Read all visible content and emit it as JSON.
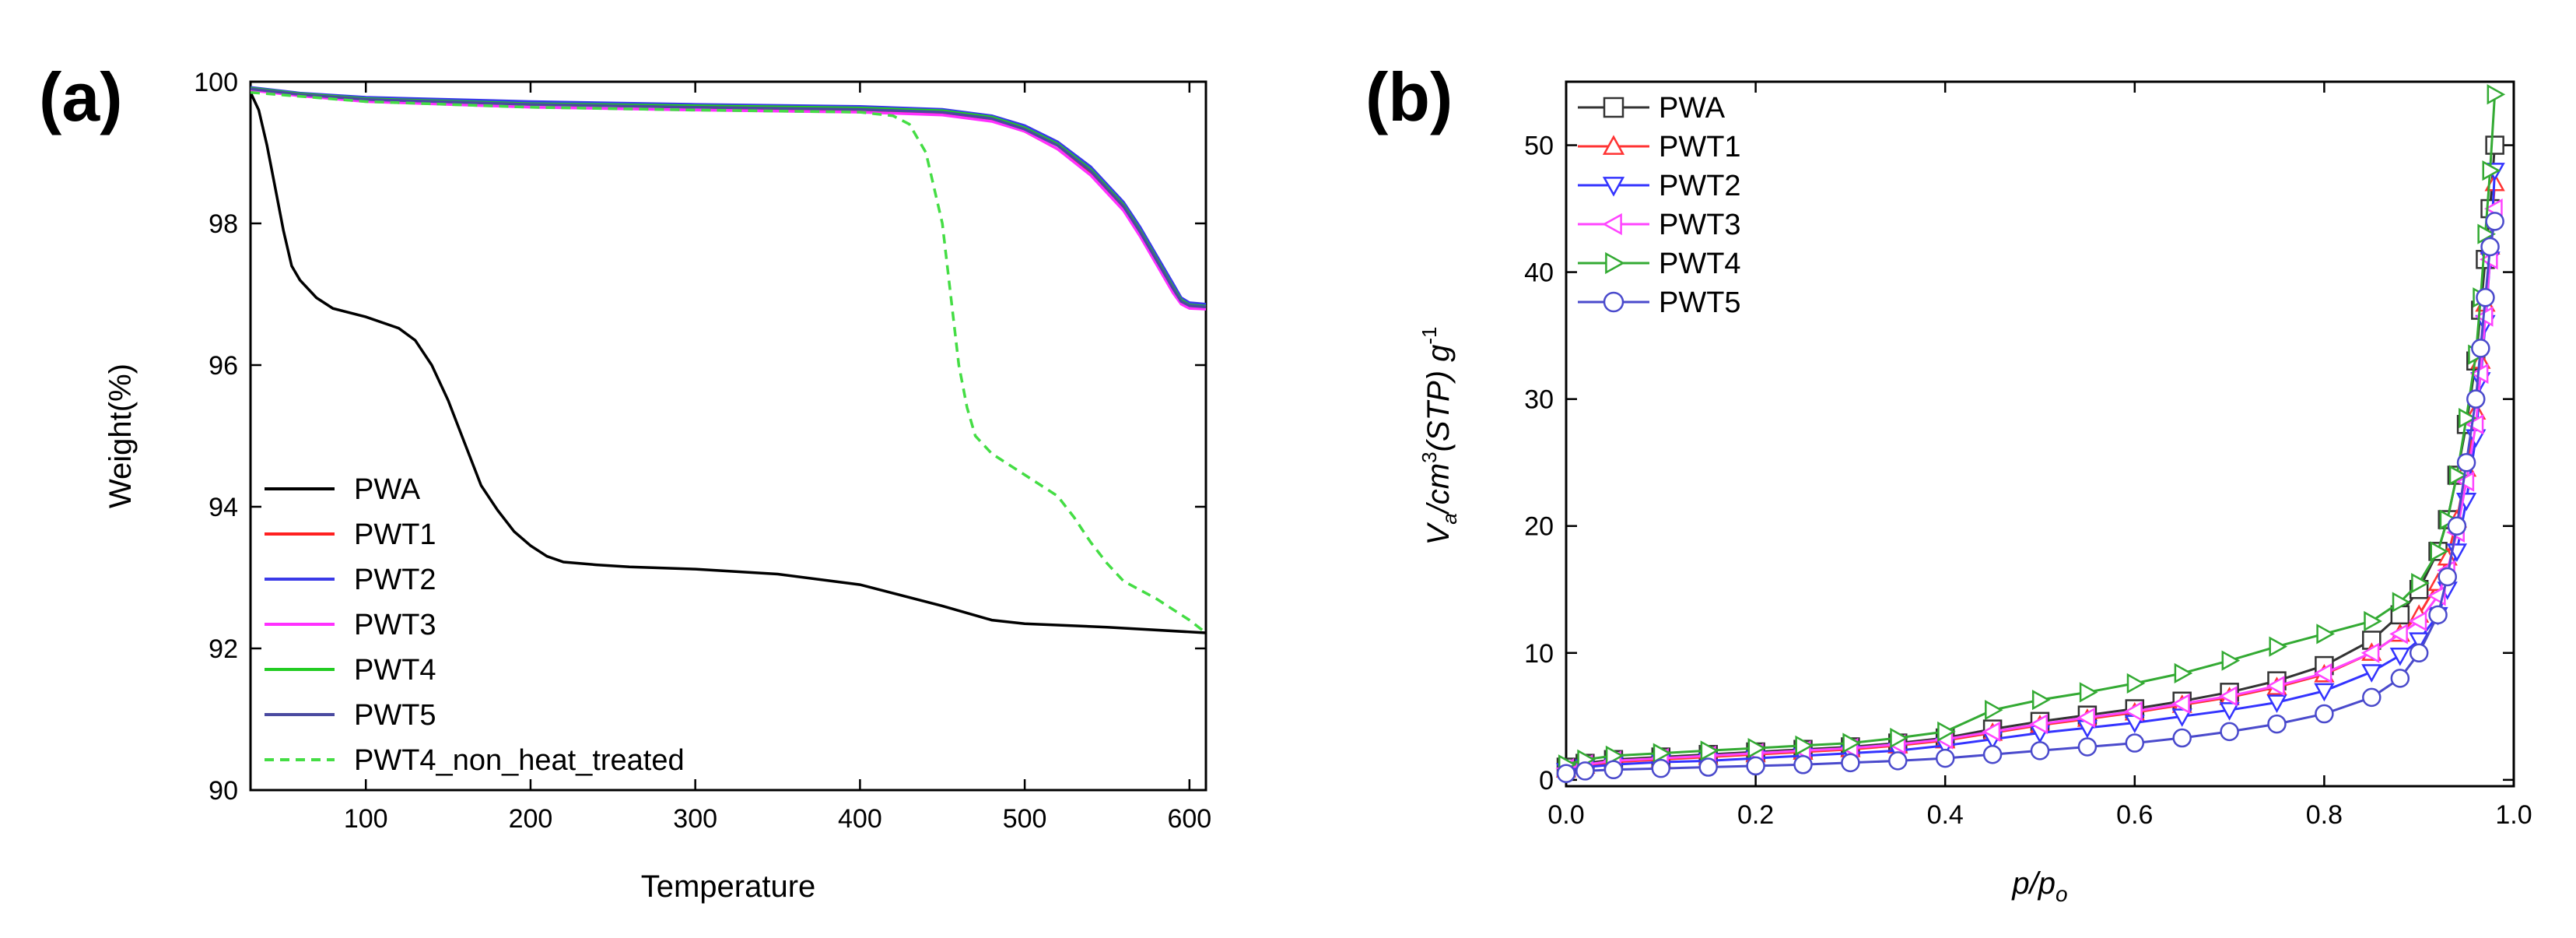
{
  "chart_data": [
    {
      "panel_label": "(a)",
      "type": "line",
      "xlabel": "Temperature",
      "ylabel": "Weight(%)",
      "xlim": [
        30,
        610
      ],
      "ylim": [
        90,
        100
      ],
      "xticks": [
        100,
        200,
        300,
        400,
        500,
        600
      ],
      "yticks": [
        90,
        92,
        94,
        96,
        98,
        100
      ],
      "legend_position": "bottom-left",
      "series": [
        {
          "name": "PWA",
          "color": "#000000",
          "dash": "solid",
          "x": [
            30,
            35,
            40,
            45,
            50,
            55,
            60,
            70,
            80,
            100,
            120,
            130,
            140,
            150,
            160,
            170,
            180,
            190,
            200,
            210,
            220,
            240,
            260,
            300,
            350,
            400,
            450,
            480,
            500,
            550,
            610
          ],
          "y": [
            99.85,
            99.6,
            99.1,
            98.5,
            97.9,
            97.4,
            97.2,
            96.95,
            96.8,
            96.68,
            96.52,
            96.35,
            96.0,
            95.5,
            94.9,
            94.3,
            93.95,
            93.65,
            93.45,
            93.3,
            93.22,
            93.18,
            93.15,
            93.12,
            93.05,
            92.9,
            92.6,
            92.4,
            92.35,
            92.3,
            92.22
          ]
        },
        {
          "name": "PWT1",
          "color": "#ff2020",
          "dash": "solid",
          "x": [
            30,
            60,
            100,
            200,
            300,
            400,
            450,
            480,
            500,
            520,
            540,
            560,
            570,
            580,
            590,
            595,
            600,
            610
          ],
          "y": [
            99.9,
            99.82,
            99.75,
            99.68,
            99.64,
            99.6,
            99.55,
            99.45,
            99.3,
            99.05,
            98.7,
            98.2,
            97.85,
            97.45,
            97.05,
            96.9,
            96.82,
            96.8
          ]
        },
        {
          "name": "PWT2",
          "color": "#3a3ae8",
          "dash": "solid",
          "x": [
            30,
            60,
            100,
            200,
            300,
            400,
            450,
            480,
            500,
            520,
            540,
            560,
            570,
            580,
            590,
            595,
            600,
            610
          ],
          "y": [
            99.92,
            99.84,
            99.78,
            99.72,
            99.68,
            99.65,
            99.61,
            99.52,
            99.38,
            99.15,
            98.8,
            98.3,
            97.95,
            97.55,
            97.15,
            96.95,
            96.88,
            96.86
          ]
        },
        {
          "name": "PWT3",
          "color": "#ff30ff",
          "dash": "solid",
          "x": [
            30,
            60,
            100,
            200,
            300,
            400,
            450,
            480,
            500,
            520,
            540,
            560,
            570,
            580,
            590,
            595,
            600,
            610
          ],
          "y": [
            99.88,
            99.8,
            99.72,
            99.64,
            99.6,
            99.57,
            99.53,
            99.44,
            99.3,
            99.05,
            98.68,
            98.18,
            97.82,
            97.42,
            97.02,
            96.86,
            96.8,
            96.79
          ]
        },
        {
          "name": "PWT4",
          "color": "#22cc22",
          "dash": "solid",
          "x": [
            30,
            60,
            100,
            200,
            300,
            400,
            450,
            480,
            500,
            520,
            540,
            560,
            570,
            580,
            590,
            595,
            600,
            610
          ],
          "y": [
            99.91,
            99.83,
            99.76,
            99.69,
            99.66,
            99.63,
            99.59,
            99.5,
            99.35,
            99.12,
            98.76,
            98.26,
            97.9,
            97.5,
            97.1,
            96.92,
            96.85,
            96.83
          ]
        },
        {
          "name": "PWT5",
          "color": "#4a4aa0",
          "dash": "solid",
          "x": [
            30,
            60,
            100,
            200,
            300,
            400,
            450,
            480,
            500,
            520,
            540,
            560,
            570,
            580,
            590,
            595,
            600,
            610
          ],
          "y": [
            99.9,
            99.82,
            99.75,
            99.68,
            99.64,
            99.61,
            99.57,
            99.48,
            99.33,
            99.1,
            98.74,
            98.24,
            97.88,
            97.48,
            97.08,
            96.9,
            96.84,
            96.82
          ]
        },
        {
          "name": "PWT4_non_heat_treated",
          "color": "#44dd44",
          "dash": "dashed",
          "x": [
            30,
            100,
            200,
            300,
            400,
            420,
            430,
            440,
            450,
            455,
            460,
            465,
            470,
            480,
            500,
            520,
            530,
            540,
            550,
            560,
            580,
            600,
            610
          ],
          "y": [
            99.85,
            99.72,
            99.64,
            99.6,
            99.57,
            99.52,
            99.4,
            99.0,
            98.0,
            97.0,
            96.0,
            95.4,
            95.0,
            94.75,
            94.45,
            94.15,
            93.85,
            93.5,
            93.2,
            92.95,
            92.7,
            92.4,
            92.22
          ]
        }
      ]
    },
    {
      "panel_label": "(b)",
      "type": "line",
      "xlabel": "p/p",
      "xlabel_sub": "o",
      "ylabel_parts": {
        "v": "V",
        "v_sub": "a",
        "mid": "/cm",
        "sup3": "3",
        "stp": "(STP) g",
        "sup_neg1": "-1"
      },
      "xlim": [
        0,
        1.0
      ],
      "ylim": [
        -0.5,
        55
      ],
      "xticks": [
        0.0,
        0.2,
        0.4,
        0.6,
        0.8,
        1.0
      ],
      "yticks": [
        0,
        10,
        20,
        30,
        40,
        50
      ],
      "legend_position": "top-left",
      "series": [
        {
          "name": "PWA",
          "color": "#333333",
          "marker": "square",
          "x": [
            0.0,
            0.02,
            0.05,
            0.1,
            0.15,
            0.2,
            0.25,
            0.3,
            0.35,
            0.4,
            0.45,
            0.5,
            0.55,
            0.6,
            0.65,
            0.7,
            0.75,
            0.8,
            0.85,
            0.88,
            0.9,
            0.92,
            0.93,
            0.94,
            0.95,
            0.96,
            0.965,
            0.97,
            0.975,
            0.98
          ],
          "y": [
            1.0,
            1.3,
            1.6,
            1.8,
            2.0,
            2.2,
            2.4,
            2.6,
            2.9,
            3.3,
            4.0,
            4.6,
            5.1,
            5.6,
            6.2,
            6.9,
            7.8,
            9.0,
            11.0,
            13.0,
            15.0,
            18.0,
            20.5,
            24.0,
            28.0,
            33.0,
            37.0,
            41.0,
            45.0,
            50.0
          ]
        },
        {
          "name": "PWT1",
          "color": "#ff3333",
          "marker": "triangle-up",
          "x": [
            0.0,
            0.02,
            0.05,
            0.1,
            0.15,
            0.2,
            0.25,
            0.3,
            0.35,
            0.4,
            0.45,
            0.5,
            0.55,
            0.6,
            0.65,
            0.7,
            0.75,
            0.8,
            0.85,
            0.88,
            0.9,
            0.92,
            0.93,
            0.94,
            0.95,
            0.96,
            0.965,
            0.97,
            0.975,
            0.98
          ],
          "y": [
            0.8,
            1.1,
            1.4,
            1.6,
            1.8,
            2.0,
            2.2,
            2.4,
            2.7,
            3.1,
            3.7,
            4.3,
            4.8,
            5.3,
            5.9,
            6.5,
            7.3,
            8.3,
            10.0,
            11.5,
            13.0,
            15.5,
            17.5,
            20.5,
            24.5,
            29.0,
            33.0,
            37.5,
            42.0,
            47.0
          ]
        },
        {
          "name": "PWT2",
          "color": "#3333ff",
          "marker": "triangle-down",
          "x": [
            0.0,
            0.02,
            0.05,
            0.1,
            0.15,
            0.2,
            0.25,
            0.3,
            0.35,
            0.4,
            0.45,
            0.5,
            0.55,
            0.6,
            0.65,
            0.7,
            0.75,
            0.8,
            0.85,
            0.88,
            0.9,
            0.92,
            0.93,
            0.94,
            0.95,
            0.96,
            0.965,
            0.97,
            0.975,
            0.98
          ],
          "y": [
            0.7,
            1.0,
            1.2,
            1.4,
            1.5,
            1.7,
            1.9,
            2.1,
            2.3,
            2.7,
            3.2,
            3.7,
            4.1,
            4.5,
            5.0,
            5.5,
            6.1,
            7.0,
            8.5,
            9.8,
            11.0,
            13.0,
            15.0,
            18.0,
            22.0,
            27.0,
            31.5,
            36.0,
            41.0,
            48.0
          ]
        },
        {
          "name": "PWT3",
          "color": "#ff44ff",
          "marker": "triangle-left",
          "x": [
            0.0,
            0.02,
            0.05,
            0.1,
            0.15,
            0.2,
            0.25,
            0.3,
            0.35,
            0.4,
            0.45,
            0.5,
            0.55,
            0.6,
            0.65,
            0.7,
            0.75,
            0.8,
            0.85,
            0.88,
            0.9,
            0.92,
            0.93,
            0.94,
            0.95,
            0.96,
            0.965,
            0.97,
            0.975,
            0.98
          ],
          "y": [
            0.9,
            1.2,
            1.5,
            1.7,
            1.9,
            2.1,
            2.3,
            2.5,
            2.8,
            3.2,
            3.8,
            4.4,
            4.9,
            5.4,
            6.0,
            6.6,
            7.4,
            8.4,
            10.0,
            11.5,
            12.5,
            14.5,
            16.5,
            19.5,
            23.5,
            28.0,
            32.0,
            36.5,
            41.0,
            45.0
          ]
        },
        {
          "name": "PWT4",
          "color": "#33aa33",
          "marker": "triangle-right",
          "x": [
            0.0,
            0.02,
            0.05,
            0.1,
            0.15,
            0.2,
            0.25,
            0.3,
            0.35,
            0.4,
            0.45,
            0.5,
            0.55,
            0.6,
            0.65,
            0.7,
            0.75,
            0.8,
            0.85,
            0.88,
            0.9,
            0.92,
            0.93,
            0.94,
            0.95,
            0.96,
            0.965,
            0.97,
            0.975,
            0.98
          ],
          "y": [
            1.2,
            1.6,
            1.9,
            2.1,
            2.3,
            2.5,
            2.7,
            2.9,
            3.3,
            3.8,
            5.5,
            6.3,
            6.9,
            7.6,
            8.4,
            9.4,
            10.5,
            11.5,
            12.5,
            14.0,
            15.5,
            18.0,
            20.5,
            24.0,
            28.5,
            33.5,
            38.0,
            43.0,
            48.0,
            54.0
          ]
        },
        {
          "name": "PWT5",
          "color": "#4a4acc",
          "marker": "circle",
          "x": [
            0.0,
            0.02,
            0.05,
            0.1,
            0.15,
            0.2,
            0.25,
            0.3,
            0.35,
            0.4,
            0.45,
            0.5,
            0.55,
            0.6,
            0.65,
            0.7,
            0.75,
            0.8,
            0.85,
            0.88,
            0.9,
            0.92,
            0.93,
            0.94,
            0.95,
            0.96,
            0.965,
            0.97,
            0.975,
            0.98
          ],
          "y": [
            0.5,
            0.7,
            0.8,
            0.9,
            1.0,
            1.1,
            1.2,
            1.35,
            1.5,
            1.7,
            2.0,
            2.3,
            2.6,
            2.9,
            3.3,
            3.8,
            4.4,
            5.2,
            6.5,
            8.0,
            10.0,
            13.0,
            16.0,
            20.0,
            25.0,
            30.0,
            34.0,
            38.0,
            42.0,
            44.0
          ]
        }
      ]
    }
  ]
}
